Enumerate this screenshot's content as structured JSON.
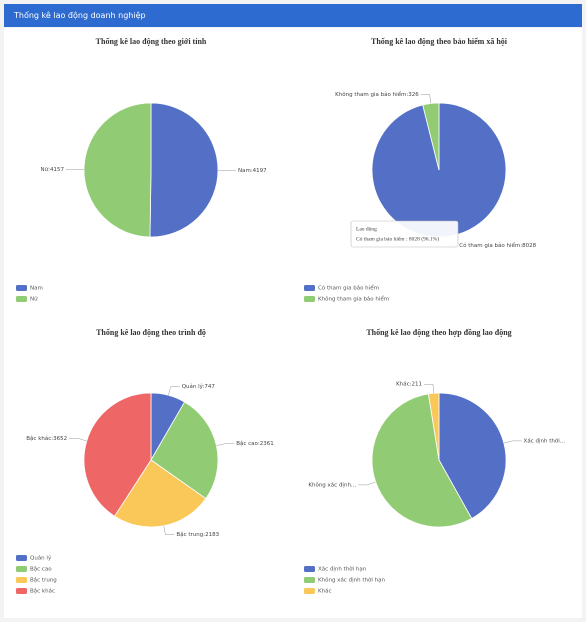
{
  "header": {
    "title": "Thống kê lao động doanh nghiệp"
  },
  "chart_data": [
    {
      "type": "pie",
      "title": "Thống kê lao động theo giới tính",
      "categories": [
        "Nam",
        "Nữ"
      ],
      "values": [
        4197,
        4157
      ],
      "value_labels": [
        "Nam:4197",
        "Nữ:4157"
      ],
      "colors": [
        "#5470c6",
        "#91cc75"
      ]
    },
    {
      "type": "pie",
      "title": "Thống kê lao động theo bảo hiểm xã hội",
      "categories": [
        "Có tham gia bảo hiểm",
        "Không tham gia bảo hiểm"
      ],
      "values": [
        8028,
        326
      ],
      "value_labels": [
        "Có tham gia bảo hiểm:8028",
        "Không tham gia bảo hiểm:326"
      ],
      "colors": [
        "#5470c6",
        "#91cc75"
      ],
      "tooltip": {
        "title": "Lao động",
        "text": "Có tham gia bảo hiểm : 8028 (96.1%)"
      }
    },
    {
      "type": "pie",
      "title": "Thống kê lao động theo trình độ",
      "categories": [
        "Quản lý",
        "Bậc cao",
        "Bậc trung",
        "Bậc khác"
      ],
      "values": [
        747,
        2361,
        2183,
        3652
      ],
      "value_labels": [
        "Quản lý:747",
        "Bậc cao:2361",
        "Bậc trung:2183",
        "Bậc khác:3652"
      ],
      "colors": [
        "#5470c6",
        "#91cc75",
        "#fac858",
        "#ee6666"
      ]
    },
    {
      "type": "pie",
      "title": "Thống kê lao động theo hợp đồng lao động",
      "categories": [
        "Xác định thời hạn",
        "Không xác định thời hạn",
        "Khác"
      ],
      "values": [
        3500,
        4643,
        211
      ],
      "value_labels": [
        "Xác định thời...",
        "Không xác định...",
        "Khác:211"
      ],
      "colors": [
        "#5470c6",
        "#91cc75",
        "#fac858"
      ]
    }
  ]
}
